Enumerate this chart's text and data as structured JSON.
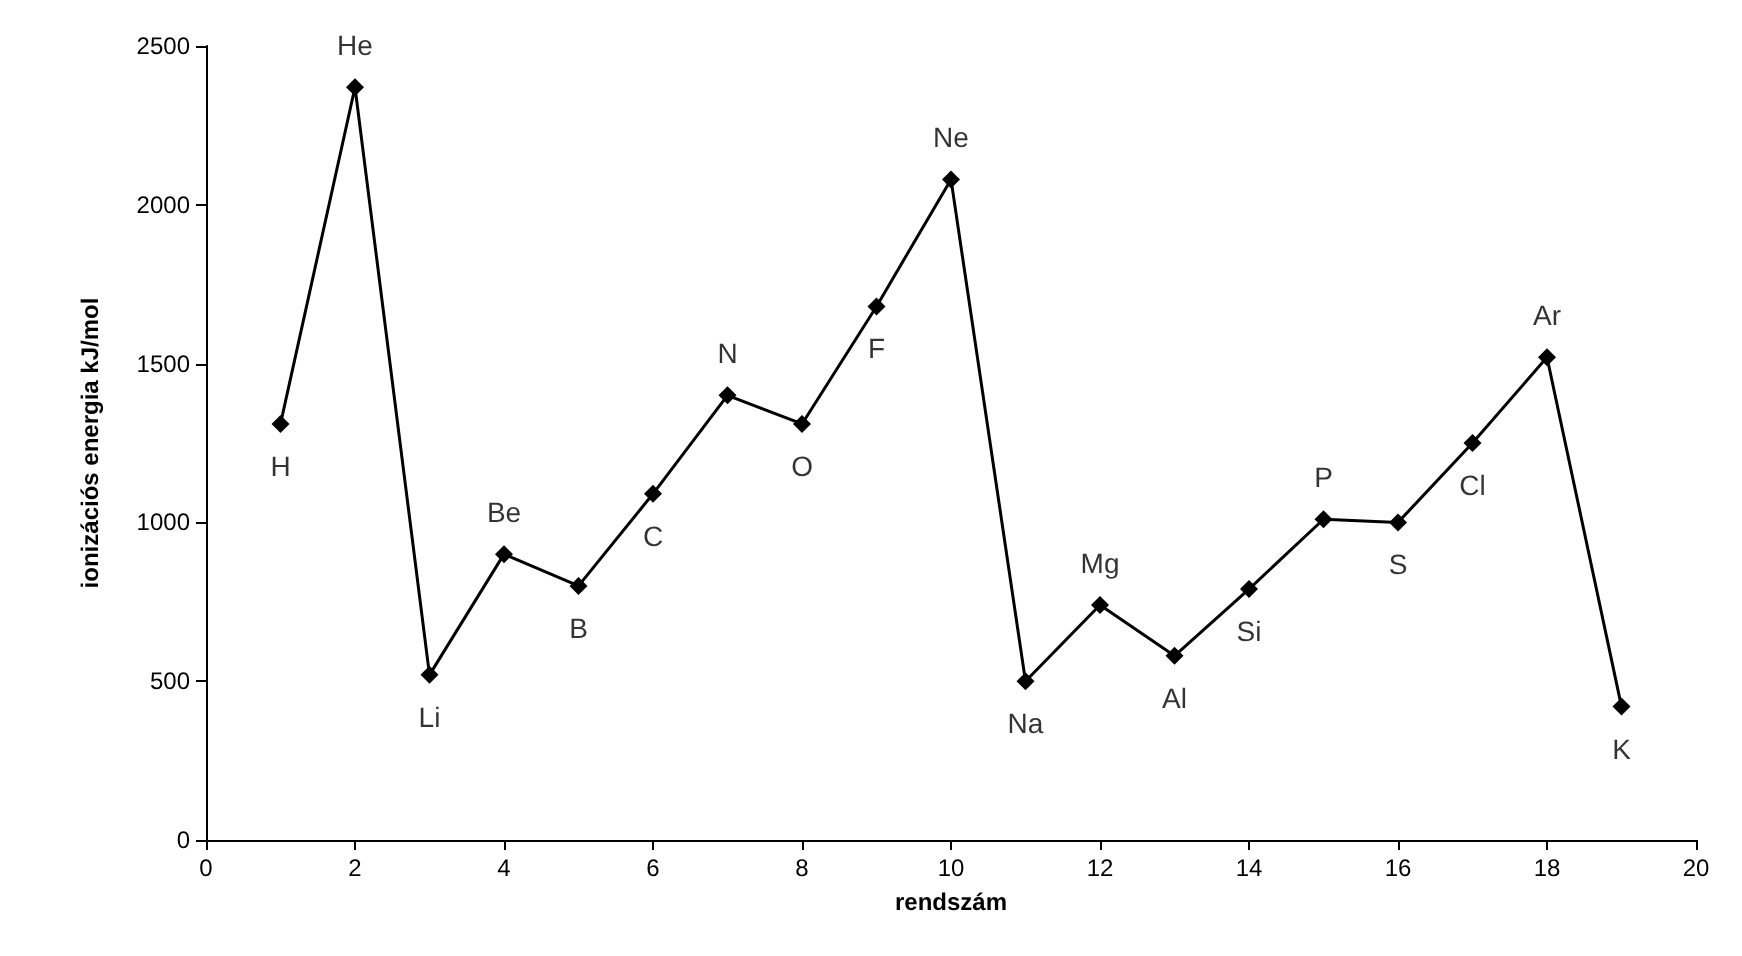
{
  "chart_data": {
    "type": "line",
    "xlabel": "rendszám",
    "ylabel": "ionizációs energia kJ/mol",
    "x": [
      1,
      2,
      3,
      4,
      5,
      6,
      7,
      8,
      9,
      10,
      11,
      12,
      13,
      14,
      15,
      16,
      17,
      18,
      19
    ],
    "series": [
      {
        "color": "#000000",
        "values": [
          1310,
          2370,
          520,
          900,
          800,
          1090,
          1400,
          1310,
          1680,
          2080,
          500,
          740,
          580,
          790,
          1010,
          1000,
          1250,
          1520,
          420
        ]
      }
    ],
    "xlim": [
      0,
      20
    ],
    "xticks": [
      0,
      2,
      4,
      6,
      8,
      10,
      12,
      14,
      16,
      18,
      20
    ],
    "ylim": [
      0,
      2500
    ],
    "yticks": [
      0,
      500,
      1000,
      1500,
      2000,
      2500
    ],
    "grid": false,
    "marker": "diamond",
    "line_style": "solid",
    "annotations": [
      {
        "text": "H",
        "x": 1,
        "y": 1310
      },
      {
        "text": "He",
        "x": 2,
        "y": 2370
      },
      {
        "text": "Li",
        "x": 3,
        "y": 520
      },
      {
        "text": "Be",
        "x": 4,
        "y": 900
      },
      {
        "text": "B",
        "x": 5,
        "y": 800
      },
      {
        "text": "C",
        "x": 6,
        "y": 1090
      },
      {
        "text": "N",
        "x": 7,
        "y": 1400
      },
      {
        "text": "O",
        "x": 8,
        "y": 1310
      },
      {
        "text": "F",
        "x": 9,
        "y": 1680
      },
      {
        "text": "Ne",
        "x": 10,
        "y": 2080
      },
      {
        "text": "Na",
        "x": 11,
        "y": 500
      },
      {
        "text": "Mg",
        "x": 12,
        "y": 740
      },
      {
        "text": "Al",
        "x": 13,
        "y": 580
      },
      {
        "text": "Si",
        "x": 14,
        "y": 790
      },
      {
        "text": "P",
        "x": 15,
        "y": 1010
      },
      {
        "text": "S",
        "x": 16,
        "y": 1000
      },
      {
        "text": "Cl",
        "x": 17,
        "y": 1250
      },
      {
        "text": "Ar",
        "x": 18,
        "y": 1520
      },
      {
        "text": "K",
        "x": 19,
        "y": 420
      }
    ]
  }
}
